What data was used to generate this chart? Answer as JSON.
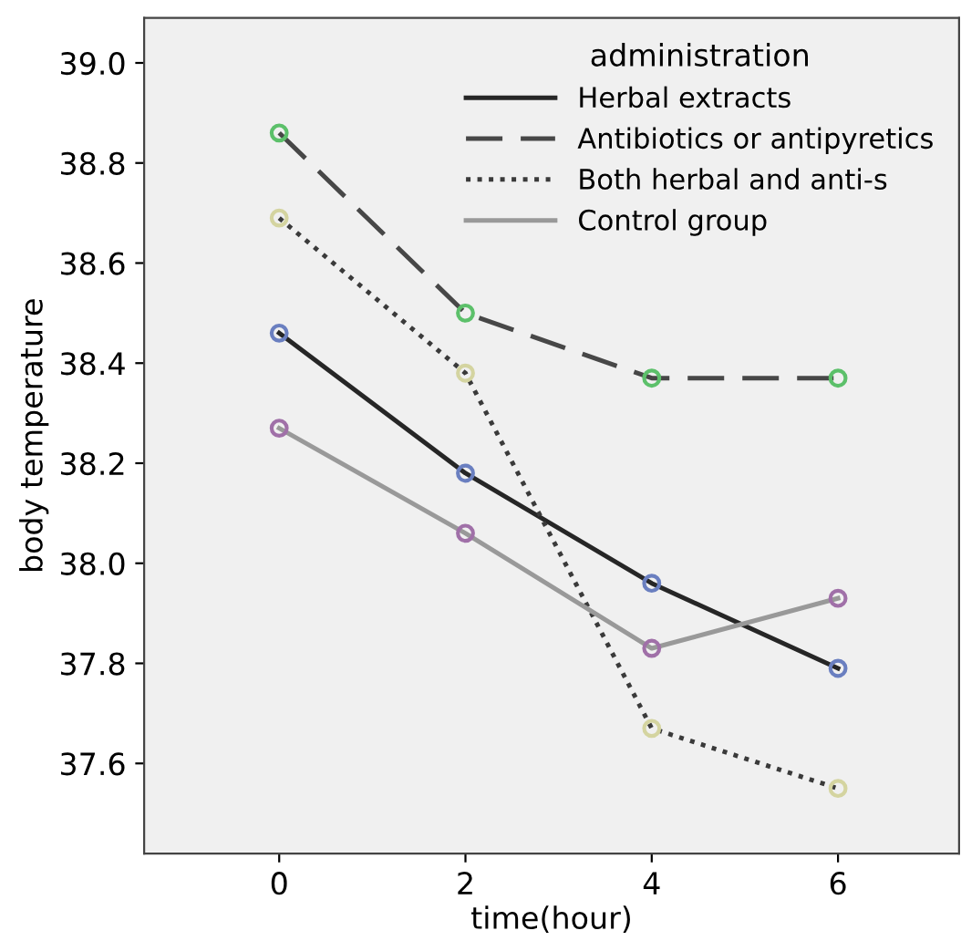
{
  "chart_data": {
    "type": "line",
    "xlabel": "time(hour)",
    "ylabel": "body temperature",
    "legend_title": "administration",
    "legend": "top right",
    "marker": "circle",
    "x": [
      0,
      2,
      4,
      6
    ],
    "xlim": [
      -1.45,
      7.3
    ],
    "xticks": [
      0,
      2,
      4,
      6
    ],
    "ylim": [
      37.42,
      39.09
    ],
    "yticks": [
      {
        "value": 37.6,
        "label": "37.6"
      },
      {
        "value": 37.8,
        "label": "37.8"
      },
      {
        "value": 38.0,
        "label": "38.0"
      },
      {
        "value": 38.2,
        "label": "38.2"
      },
      {
        "value": 38.4,
        "label": "38.4"
      },
      {
        "value": 38.6,
        "label": "38.6"
      },
      {
        "value": 38.8,
        "label": "38.8"
      },
      {
        "value": 39.0,
        "label": "39.0"
      }
    ],
    "series": [
      {
        "name": "Herbal extracts",
        "color": "#262626",
        "line_style": "solid",
        "colors": [
          "#6a7fc0",
          "#6a7fc0",
          "#6a7fc0",
          "#6a7fc0"
        ],
        "values": [
          38.46,
          38.18,
          37.96,
          37.79
        ]
      },
      {
        "name": "Antibiotics or antipyretics",
        "color": "#474747",
        "line_style": "dashed",
        "colors": [
          "#5cc06a",
          "#5cc06a",
          "#5cc06a",
          "#5cc06a"
        ],
        "values": [
          38.86,
          38.5,
          38.37,
          38.37
        ]
      },
      {
        "name": "Both herbal and anti-s",
        "color": "#3a3a3a",
        "line_style": "dotted",
        "colors": [
          "#d4d4a0",
          "#d4d4a0",
          "#d4d4a0",
          "#d4d4a0"
        ],
        "values": [
          38.69,
          38.38,
          37.67,
          37.55
        ]
      },
      {
        "name": "Control group",
        "color": "#999999",
        "line_style": "solid",
        "colors": [
          "#a070a8",
          "#a070a8",
          "#a070a8",
          "#a070a8"
        ],
        "values": [
          38.27,
          38.06,
          37.83,
          37.93
        ]
      }
    ]
  }
}
